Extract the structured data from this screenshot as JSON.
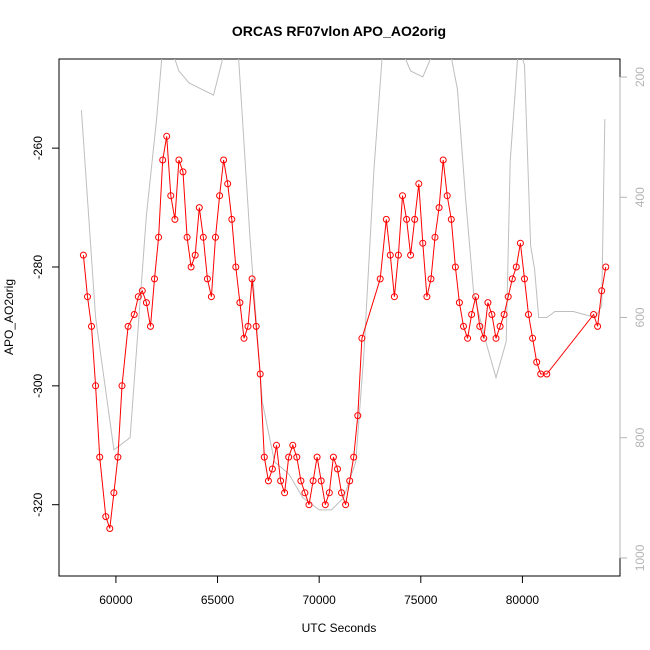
{
  "chart_data": {
    "type": "scatter",
    "title": "ORCAS RF07vlon APO_AO2orig",
    "xlabel": "UTC Seconds",
    "ylabel": "APO_AO2orig",
    "xlim": [
      57200,
      84800
    ],
    "ylim": [
      -332,
      -245
    ],
    "y2lim": [
      1030,
      170
    ],
    "xticks": [
      60000,
      65000,
      70000,
      75000,
      80000
    ],
    "yticks": [
      -260,
      -280,
      -300,
      -320
    ],
    "y2ticks": [
      200,
      400,
      600,
      800,
      1000
    ],
    "grid": false,
    "legend": "none",
    "colors": {
      "primary": "#ff0000",
      "secondary": "#bebebe",
      "axis": "#000000",
      "axis2": "#b4b4b4"
    },
    "series": [
      {
        "axis": "left",
        "style": "line+points",
        "color": "#ff0000",
        "x": [
          58400,
          58600,
          58800,
          59000,
          59200,
          59500,
          59700,
          59900,
          60100,
          60300,
          60600,
          60900,
          61100,
          61300,
          61500,
          61700,
          61900,
          62100,
          62300,
          62500,
          62700,
          62900,
          63100,
          63300,
          63500,
          63700,
          63900,
          64100,
          64300,
          64500,
          64700,
          64900,
          65100,
          65300,
          65500,
          65700,
          65900,
          66100,
          66300,
          66500,
          66700,
          66900,
          67100,
          67300,
          67500,
          67700,
          67900,
          68100,
          68300,
          68500,
          68700,
          68900,
          69100,
          69300,
          69500,
          69700,
          69900,
          70100,
          70300,
          70500,
          70700,
          70900,
          71100,
          71300,
          71500,
          71700,
          71900,
          72100,
          73000,
          73300,
          73500,
          73700,
          73900,
          74100,
          74300,
          74500,
          74700,
          74900,
          75100,
          75300,
          75500,
          75700,
          75900,
          76100,
          76300,
          76500,
          76700,
          76900,
          77100,
          77300,
          77500,
          77700,
          77900,
          78100,
          78300,
          78500,
          78700,
          78900,
          79100,
          79300,
          79500,
          79700,
          79900,
          80100,
          80300,
          80500,
          80700,
          80900,
          81200,
          83500,
          83700,
          83900,
          84100
        ],
        "y": [
          -278,
          -285,
          -290,
          -300,
          -312,
          -322,
          -324,
          -318,
          -312,
          -300,
          -290,
          -288,
          -285,
          -284,
          -286,
          -290,
          -282,
          -275,
          -262,
          -258,
          -268,
          -272,
          -262,
          -264,
          -275,
          -280,
          -278,
          -270,
          -275,
          -282,
          -285,
          -275,
          -268,
          -262,
          -266,
          -272,
          -280,
          -286,
          -292,
          -290,
          -282,
          -290,
          -298,
          -312,
          -316,
          -314,
          -310,
          -316,
          -318,
          -312,
          -310,
          -312,
          -316,
          -318,
          -320,
          -316,
          -312,
          -316,
          -320,
          -318,
          -312,
          -314,
          -318,
          -320,
          -316,
          -312,
          -305,
          -292,
          -282,
          -272,
          -278,
          -285,
          -278,
          -268,
          -272,
          -278,
          -272,
          -266,
          -276,
          -285,
          -282,
          -275,
          -270,
          -262,
          -268,
          -272,
          -280,
          -286,
          -290,
          -292,
          -288,
          -285,
          -290,
          -292,
          -286,
          -288,
          -292,
          -290,
          -288,
          -285,
          -282,
          -280,
          -276,
          -282,
          -288,
          -292,
          -296,
          -298,
          -298,
          -288,
          -290,
          -284,
          -280
        ]
      },
      {
        "axis": "right",
        "style": "line",
        "color": "#bebebe",
        "x": [
          58300,
          59000,
          59900,
          60700,
          61500,
          62000,
          62300,
          62700,
          63100,
          63600,
          64200,
          64800,
          65400,
          66000,
          66600,
          67200,
          67800,
          68500,
          69200,
          70000,
          70600,
          71200,
          71800,
          72200,
          72700,
          73200,
          73600,
          74000,
          74500,
          75100,
          75600,
          76000,
          76400,
          76800,
          77200,
          77600,
          78200,
          78700,
          79200,
          79400,
          79800,
          80100,
          80400,
          80600,
          80800,
          81200,
          81600,
          82500,
          83600,
          83900,
          84050
        ],
        "y": [
          255,
          600,
          820,
          800,
          430,
          270,
          150,
          150,
          190,
          210,
          220,
          230,
          150,
          150,
          470,
          740,
          840,
          860,
          900,
          920,
          920,
          900,
          840,
          660,
          350,
          120,
          130,
          150,
          190,
          200,
          160,
          150,
          150,
          220,
          400,
          560,
          640,
          700,
          640,
          340,
          150,
          180,
          480,
          520,
          600,
          600,
          590,
          590,
          600,
          580,
          270
        ]
      }
    ]
  }
}
